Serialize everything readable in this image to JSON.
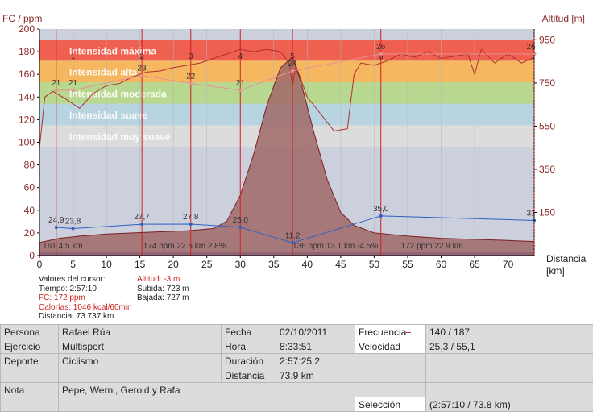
{
  "chart_data": {
    "type": "line",
    "y_left_label": "FC / ppm",
    "y_right_label": "Altitud [m]",
    "x_label": "Distancia",
    "x_unit": "[km]",
    "y_left_ticks": [
      0,
      20,
      40,
      60,
      80,
      100,
      120,
      140,
      160,
      180,
      200
    ],
    "y_right_ticks": [
      150,
      350,
      550,
      750,
      950
    ],
    "x_ticks": [
      0,
      5,
      10,
      15,
      20,
      25,
      30,
      35,
      40,
      45,
      50,
      55,
      60,
      65,
      70
    ],
    "xlim": [
      0,
      73.9
    ],
    "ylim_left": [
      0,
      200
    ],
    "ylim_right": [
      -50,
      1000
    ],
    "zones": [
      {
        "label": "Intensidad máxima",
        "from": 172,
        "to": 190,
        "color": "#f06050"
      },
      {
        "label": "Intensidad alta",
        "from": 153,
        "to": 172,
        "color": "#f5b860"
      },
      {
        "label": "Intensidad moderada",
        "from": 134,
        "to": 153,
        "color": "#b8d890"
      },
      {
        "label": "Intensidad suave",
        "from": 115,
        "to": 134,
        "color": "#b8d4e0"
      },
      {
        "label": "Intensidad muy suave",
        "from": 96,
        "to": 115,
        "color": "#dcdcdc"
      }
    ],
    "lap_distances": [
      2.5,
      5,
      15.3,
      22.6,
      30,
      37.8,
      51,
      73.9
    ],
    "lap_numbers": [
      "1",
      "2",
      "3",
      "4",
      "5",
      "6",
      "7"
    ],
    "series": [
      {
        "name": "Velocidad",
        "color": "#3060c0",
        "x": [
          2.5,
          5,
          15.3,
          22.6,
          30,
          37.8,
          51,
          73.9
        ],
        "values": [
          24.9,
          23.8,
          27.7,
          27.8,
          25.0,
          11.2,
          35.0,
          31.0
        ],
        "labels": [
          "24,9",
          "23,8",
          "27,7",
          "27,8",
          "25,0",
          "11,2",
          "35,0",
          "31"
        ]
      },
      {
        "name": "FC",
        "color": "#e89090",
        "x": [
          2.5,
          5,
          15.3,
          22.6,
          30,
          37.8,
          51,
          73.9
        ],
        "values": [
          146,
          146,
          159,
          152,
          146,
          163,
          178,
          178
        ],
        "labels": [
          "21",
          "21",
          "23",
          "22",
          "21",
          "24",
          "26",
          "26"
        ]
      }
    ],
    "altitude_profile": {
      "x": [
        0,
        3,
        6,
        10,
        14,
        18,
        22,
        26,
        28,
        30,
        32,
        34,
        36,
        37.8,
        39,
        41,
        43,
        45,
        47,
        50,
        55,
        60,
        65,
        70,
        73.9
      ],
      "y": [
        10,
        30,
        40,
        50,
        55,
        60,
        65,
        75,
        110,
        230,
        420,
        650,
        820,
        870,
        760,
        520,
        300,
        150,
        90,
        55,
        40,
        30,
        25,
        20,
        15
      ]
    },
    "heart_rate_profile": {
      "x": [
        0,
        0.8,
        2,
        4,
        6,
        8,
        10,
        12,
        14,
        16,
        18,
        20,
        22,
        24,
        26,
        28,
        30,
        32,
        34,
        36,
        37.3,
        37.8,
        38.3,
        40,
        42,
        44,
        46,
        47,
        48,
        50,
        52,
        54,
        56,
        58,
        60,
        62,
        64,
        65,
        66,
        68,
        70,
        72,
        73.9
      ],
      "y": [
        95,
        140,
        145,
        138,
        130,
        143,
        150,
        152,
        158,
        162,
        163,
        166,
        168,
        170,
        174,
        178,
        182,
        180,
        182,
        180,
        170,
        150,
        168,
        140,
        125,
        110,
        112,
        160,
        170,
        168,
        172,
        178,
        175,
        180,
        174,
        176,
        178,
        160,
        182,
        170,
        178,
        170,
        175
      ]
    },
    "lap_annotations": [
      {
        "text": "161 4.5 km",
        "x": 0.5
      },
      {
        "text": "174 ppm 22.5 km 2.8%",
        "x": 15.5
      },
      {
        "text": "136 ppm 13.1 km -4.5%",
        "x": 37.8
      },
      {
        "text": "172 ppm 22.9 km",
        "x": 54
      }
    ],
    "grid": true
  },
  "cursor": {
    "title": "Valores del cursor:",
    "time": "Tiempo: 2:57:10",
    "fc": "FC: 172 ppm",
    "calories": "Calorías: 1046 kcal/60min",
    "distance": "Distancia: 73.737 km",
    "altitude": "Altitud: -3 m",
    "ascent": "Subida: 723 m",
    "descent": "Bajada: 727 m"
  },
  "info": {
    "persona_label": "Persona",
    "persona": "Rafael Rúa",
    "ejercicio_label": "Ejercicio",
    "ejercicio": "Multisport",
    "deporte_label": "Deporte",
    "deporte": "Ciclismo",
    "nota_label": "Nota",
    "nota": "Pepe, Werni, Gerold y Rafa",
    "fecha_label": "Fecha",
    "fecha": "02/10/2011",
    "hora_label": "Hora",
    "hora": "8:33:51",
    "duracion_label": "Duración",
    "duracion": "2:57:25.2",
    "distancia_label": "Distancia",
    "distancia": "73.9 km",
    "frecuencia_label": "Frecuencia",
    "frecuencia": "140 / 187",
    "velocidad_label": "Velocidad",
    "velocidad": "25,3 / 55,1",
    "seleccion_label": "Selección",
    "seleccion": "(2:57:10 / 73.8 km)"
  }
}
